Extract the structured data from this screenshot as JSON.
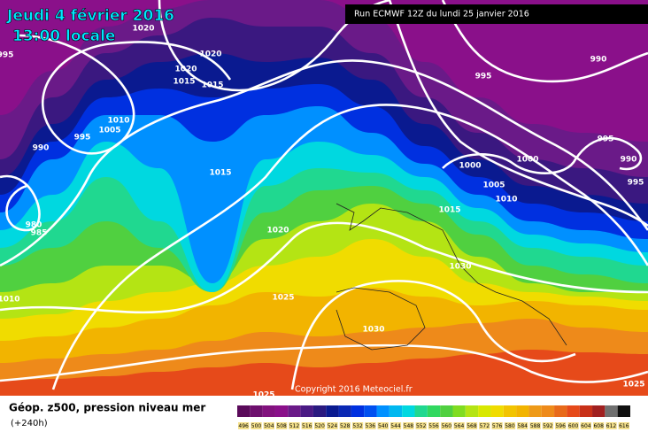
{
  "map": {
    "date_line": "Jeudi 4 février 2016",
    "time_line": "13:00 locale",
    "run": "Run ECMWF 12Z du lundi 25 janvier 2016",
    "copyright": "Copyright 2016 Meteociel.fr",
    "field": "Géop. z500, pression niveau mer",
    "lead": "(+240h)",
    "isobar_labels": [
      1020,
      995,
      1020,
      1020,
      1015,
      1015,
      990,
      995,
      1010,
      1005,
      995,
      990,
      995,
      1000,
      1000,
      990,
      1015,
      995,
      1005,
      1010,
      1015,
      980,
      985,
      1020,
      1030,
      1010,
      1025,
      1030,
      1025,
      1025
    ],
    "scale": {
      "values": [
        496,
        500,
        504,
        508,
        512,
        516,
        520,
        524,
        528,
        532,
        536,
        540,
        544,
        548,
        552,
        556,
        560,
        564,
        568,
        572,
        576,
        580,
        584,
        588,
        592,
        596,
        600,
        604,
        608,
        612,
        616
      ],
      "colors": [
        "#5a0a5a",
        "#6e106e",
        "#82127e",
        "#8a108a",
        "#6a1a88",
        "#4a1a84",
        "#2a1a80",
        "#0a1a90",
        "#0a28b4",
        "#0030e0",
        "#0050f0",
        "#0090ff",
        "#00b8f0",
        "#00d8e0",
        "#20d890",
        "#30d860",
        "#50d040",
        "#80dc20",
        "#b4e414",
        "#d8e800",
        "#f0dc00",
        "#f2c400",
        "#f2b400",
        "#ee9a18",
        "#ee8a1a",
        "#e86a1a",
        "#e64a1a",
        "#c83018",
        "#a02020",
        "#707070",
        "#101010"
      ]
    }
  }
}
